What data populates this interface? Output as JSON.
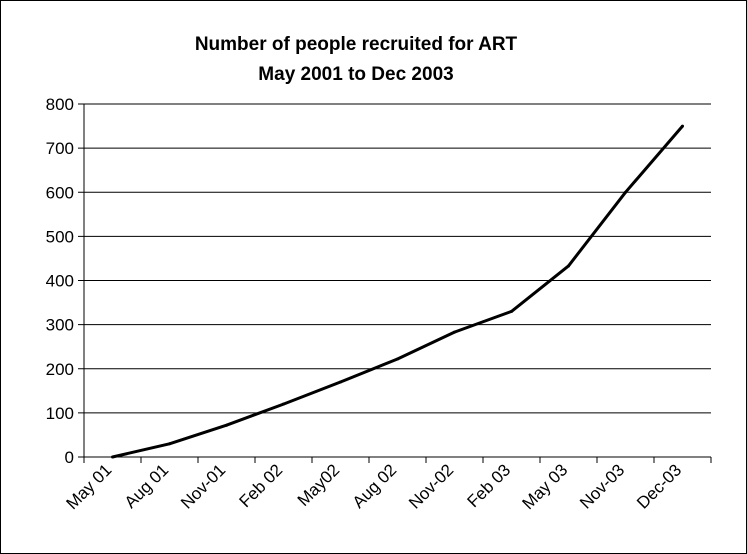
{
  "chart_data": {
    "type": "line",
    "title": "Number of people recruited for ART",
    "subtitle": "May 2001 to Dec 2003",
    "xlabel": "",
    "ylabel": "",
    "ylim": [
      0,
      800
    ],
    "yticks": [
      0,
      100,
      200,
      300,
      400,
      500,
      600,
      700,
      800
    ],
    "grid": true,
    "legend": "none",
    "x_labels": [
      "May 01",
      "Aug 01",
      "Nov-01",
      "Feb 02",
      "May02",
      "Aug 02",
      "Nov-02",
      "Feb 03",
      "May 03",
      "Nov-03",
      "Dec-03"
    ],
    "series": [
      {
        "color": "#000000",
        "values": [
          0,
          30,
          72,
          120,
          170,
          222,
          283,
          330,
          433,
          600,
          750
        ]
      }
    ]
  }
}
